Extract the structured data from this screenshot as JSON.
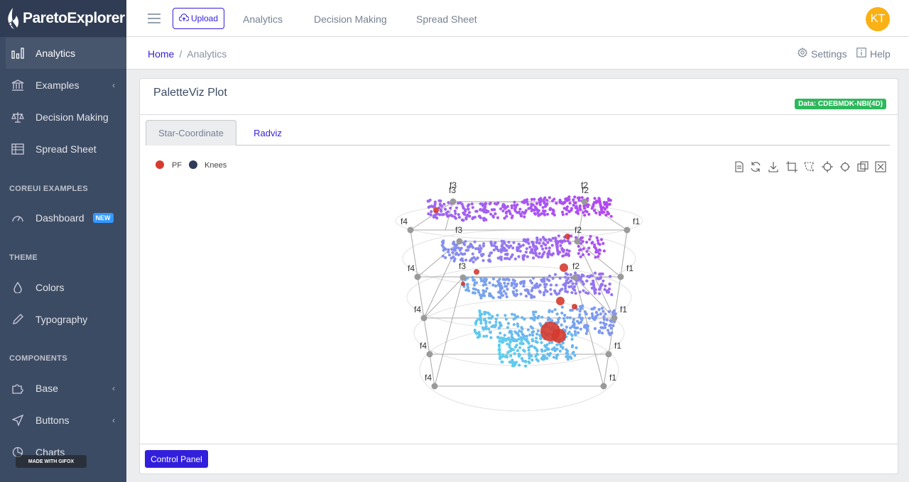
{
  "brand": {
    "name": "ParetoExplorer"
  },
  "sidebar": {
    "items": [
      {
        "label": "Analytics"
      },
      {
        "label": "Examples"
      },
      {
        "label": "Decision Making"
      },
      {
        "label": "Spread Sheet"
      },
      {
        "label": "Dashboard",
        "badge": "NEW"
      },
      {
        "label": "Colors"
      },
      {
        "label": "Typography"
      },
      {
        "label": "Base"
      },
      {
        "label": "Buttons"
      },
      {
        "label": "Charts"
      }
    ],
    "titles": [
      "COREUI EXAMPLES",
      "THEME",
      "COMPONENTS"
    ]
  },
  "header": {
    "upload": "Upload",
    "nav": [
      "Analytics",
      "Decision Making",
      "Spread Sheet"
    ],
    "avatar": "KT"
  },
  "breadcrumb": {
    "home": "Home",
    "sep": "/",
    "current": "Analytics"
  },
  "subheader": {
    "settings": "Settings",
    "help": "Help"
  },
  "card": {
    "title": "PaletteViz Plot",
    "data_badge": "Data: CDEBMDK-NBI(4D)",
    "tabs": [
      "Star-Coordinate",
      "Radviz"
    ],
    "control_panel": "Control Panel"
  },
  "plot": {
    "legend": [
      {
        "name": "PF",
        "color": "#d63b2f"
      },
      {
        "name": "Knees",
        "color": "#2f3b5a"
      }
    ],
    "anchor_labels": [
      "f1",
      "f2",
      "f3",
      "f4"
    ],
    "colors": {
      "low": "#5bd0ee",
      "high": "#b347f2",
      "knee": "#d63b2f",
      "anchor": "#9a9a9a"
    }
  },
  "watermark": "MADE WITH GIFOX",
  "colors": {
    "primary": "#321fdb",
    "sidebar": "#3c4b64",
    "success": "#2eb85c",
    "warning": "#f9b115"
  }
}
